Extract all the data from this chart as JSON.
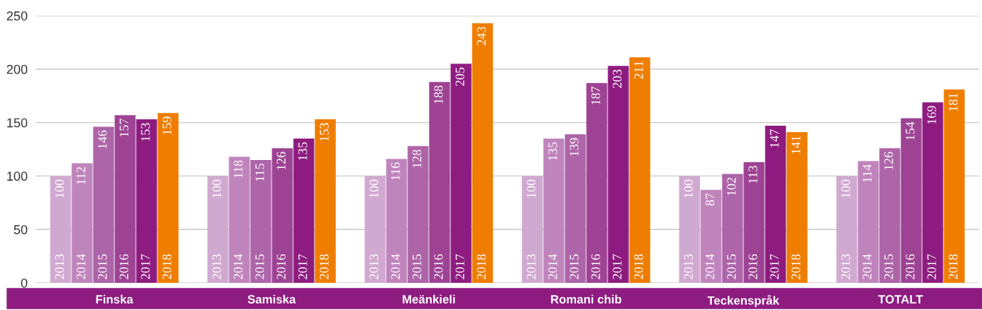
{
  "chart_data": {
    "type": "bar",
    "categories": [
      "Finska",
      "Samiska",
      "Meänkieli",
      "Romani chib",
      "Teckenspråk",
      "TOTALT"
    ],
    "series": [
      {
        "name": "2013",
        "color": "#d0a9d0",
        "values": [
          100,
          100,
          100,
          100,
          100,
          100
        ]
      },
      {
        "name": "2014",
        "color": "#c084bc",
        "values": [
          112,
          118,
          116,
          135,
          87,
          114
        ]
      },
      {
        "name": "2015",
        "color": "#ad64a8",
        "values": [
          146,
          115,
          128,
          139,
          102,
          126
        ]
      },
      {
        "name": "2016",
        "color": "#9e4394",
        "values": [
          157,
          126,
          188,
          187,
          113,
          154
        ]
      },
      {
        "name": "2017",
        "color": "#8e1c80",
        "values": [
          153,
          135,
          205,
          203,
          147,
          169
        ]
      },
      {
        "name": "2018",
        "color": "#ee7d00",
        "values": [
          159,
          153,
          243,
          211,
          141,
          181
        ]
      }
    ],
    "ylim": [
      0,
      250
    ],
    "yticks": [
      0,
      50,
      100,
      150,
      200,
      250
    ],
    "grid": "y",
    "legend": false,
    "data_labels": true
  }
}
